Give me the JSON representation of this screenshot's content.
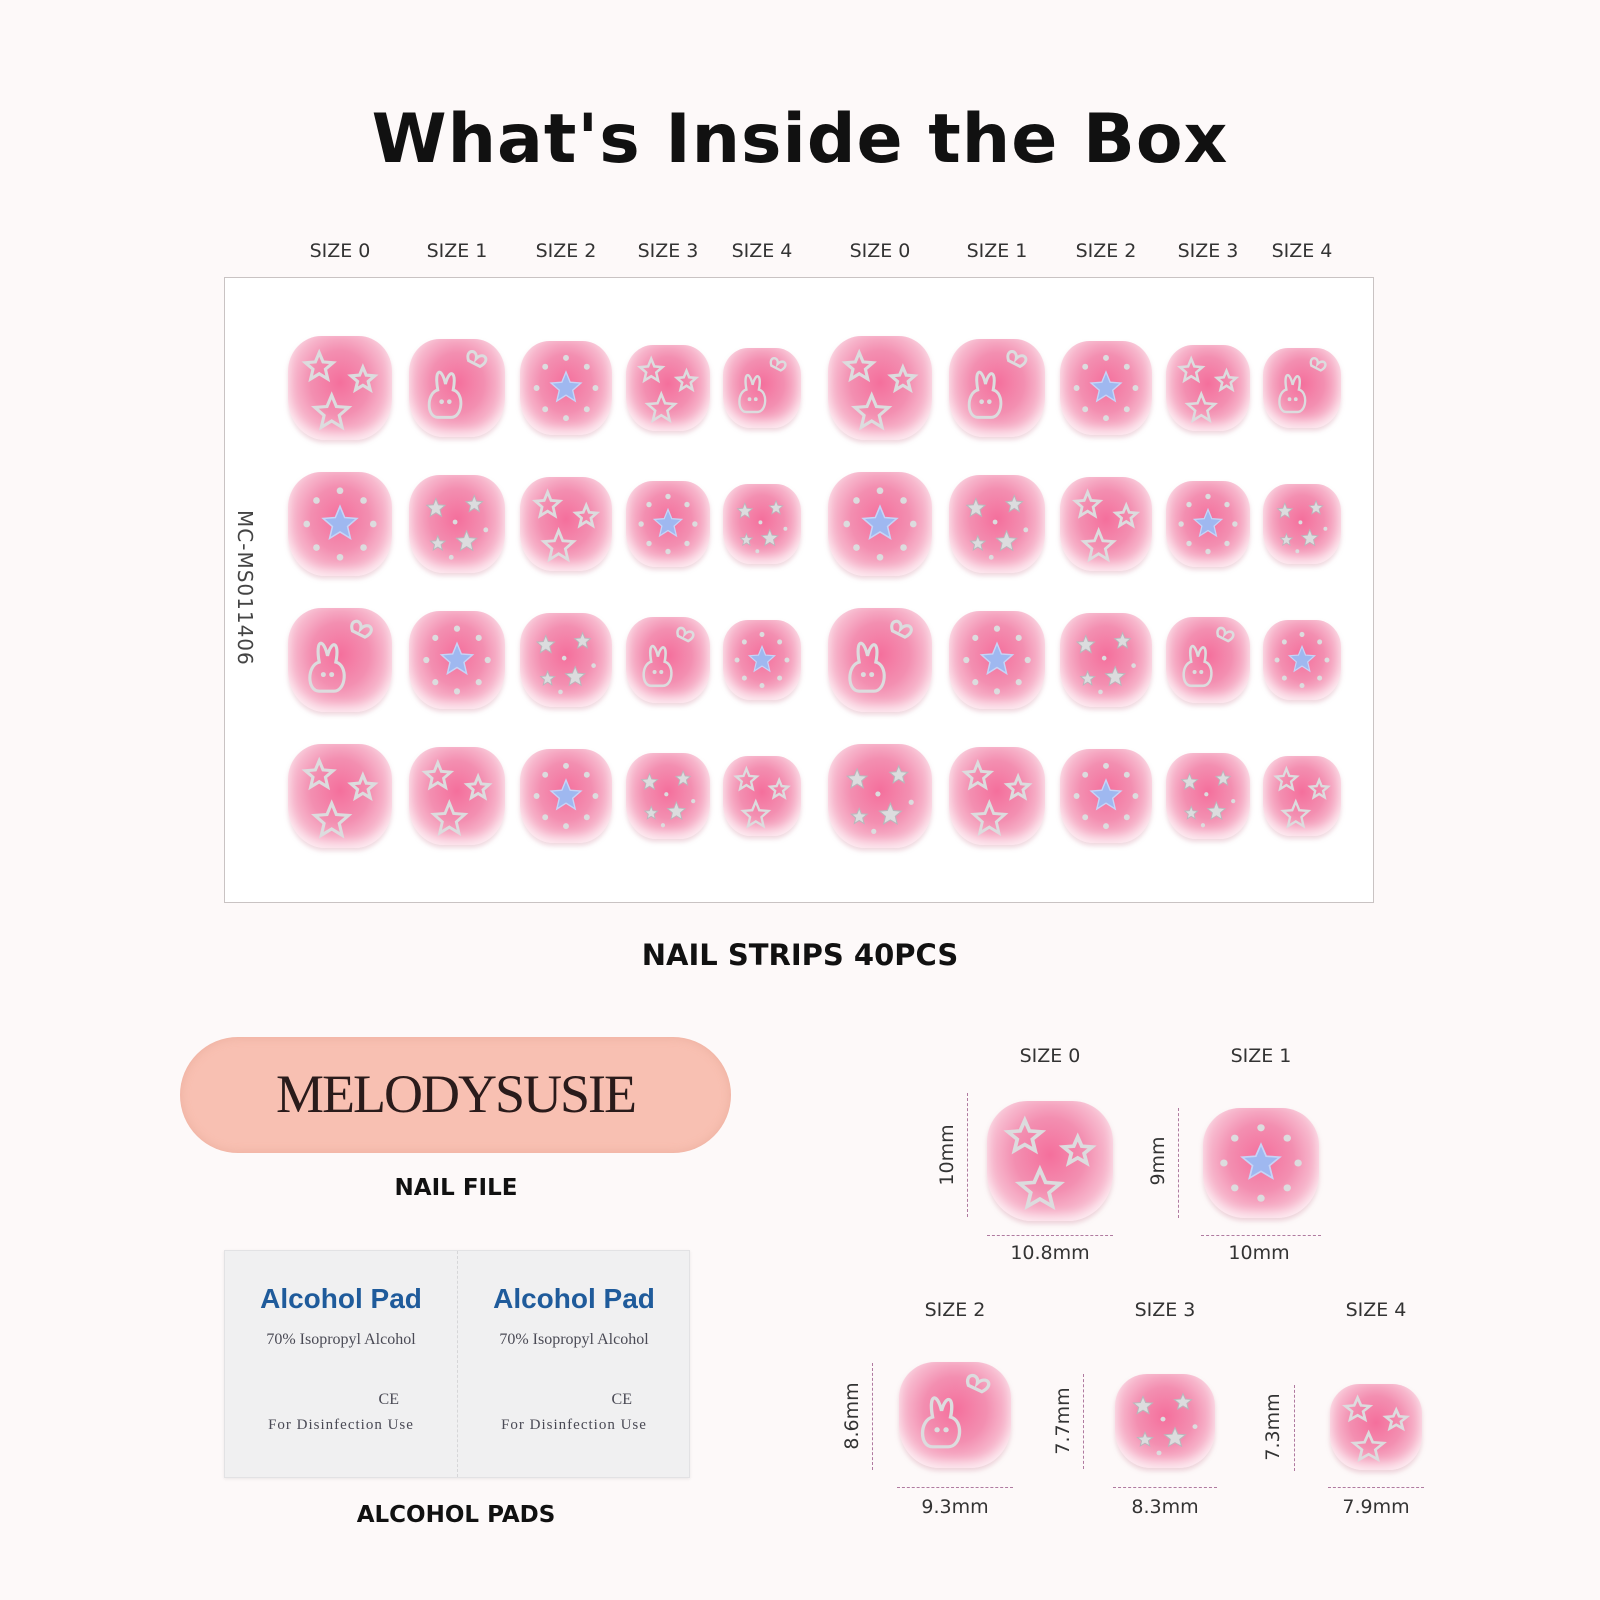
{
  "title": "What's Inside the Box",
  "sheet": {
    "size_labels": [
      "SIZE 0",
      "SIZE 1",
      "SIZE 2",
      "SIZE 3",
      "SIZE 4",
      "SIZE 0",
      "SIZE 1",
      "SIZE 2",
      "SIZE 3",
      "SIZE 4"
    ],
    "code": "MC-MS011406",
    "caption": "NAIL STRIPS 40PCS"
  },
  "nail_file": {
    "brand": "MELODYSUSIE",
    "caption": "NAIL FILE"
  },
  "alcohol_pads": {
    "pads": [
      {
        "title": "Alcohol  Pad",
        "subtitle": "70% Isopropyl Alcohol",
        "mark": "CE",
        "use": "For Disinfection Use"
      },
      {
        "title": "Alcohol  Pad",
        "subtitle": "70% Isopropyl Alcohol",
        "mark": "CE",
        "use": "For Disinfection Use"
      }
    ],
    "caption": "ALCOHOL PADS"
  },
  "size_details": [
    {
      "label": "SIZE 0",
      "height": "10mm",
      "width": "10.8mm"
    },
    {
      "label": "SIZE 1",
      "height": "9mm",
      "width": "10mm"
    },
    {
      "label": "SIZE 2",
      "height": "8.6mm",
      "width": "9.3mm"
    },
    {
      "label": "SIZE 3",
      "height": "7.7mm",
      "width": "8.3mm"
    },
    {
      "label": "SIZE 4",
      "height": "7.3mm",
      "width": "7.9mm"
    }
  ],
  "colors": {
    "nail_pink": "#f38fb1",
    "star_blue": "#9fb8f0",
    "pad_title": "#1f5b9b",
    "file_pink": "#f8c0b2"
  }
}
